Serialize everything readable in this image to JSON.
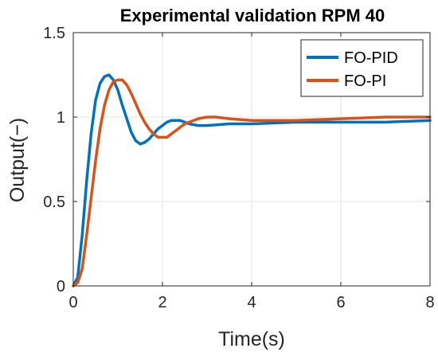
{
  "chart_data": {
    "type": "line",
    "title": "Experimental validation RPM 40",
    "xlabel": "Time(s)",
    "ylabel": "Output(−)",
    "xlim": [
      0,
      8
    ],
    "ylim": [
      0,
      1.5
    ],
    "xticks": [
      0,
      2,
      4,
      6,
      8
    ],
    "yticks": [
      0,
      0.5,
      1,
      1.5
    ],
    "ytick_labels": [
      "0",
      "0.5",
      "1",
      "1.5"
    ],
    "grid": true,
    "legend_position": "top-right",
    "series": [
      {
        "name": "FO-PID",
        "color": "#0072BD",
        "x": [
          0,
          0.1,
          0.2,
          0.3,
          0.4,
          0.5,
          0.6,
          0.7,
          0.8,
          0.9,
          1.0,
          1.1,
          1.2,
          1.3,
          1.4,
          1.5,
          1.6,
          1.7,
          1.8,
          1.9,
          2.0,
          2.1,
          2.2,
          2.3,
          2.4,
          2.5,
          2.6,
          2.8,
          3.0,
          3.5,
          4.0,
          5.0,
          6.0,
          7.0,
          8.0
        ],
        "y": [
          0,
          0.05,
          0.3,
          0.62,
          0.9,
          1.1,
          1.2,
          1.24,
          1.25,
          1.22,
          1.16,
          1.07,
          0.99,
          0.91,
          0.86,
          0.84,
          0.85,
          0.87,
          0.9,
          0.93,
          0.95,
          0.97,
          0.98,
          0.98,
          0.98,
          0.97,
          0.96,
          0.95,
          0.95,
          0.96,
          0.96,
          0.97,
          0.97,
          0.97,
          0.98
        ]
      },
      {
        "name": "FO-PI",
        "color": "#D95319",
        "x": [
          0,
          0.1,
          0.2,
          0.3,
          0.4,
          0.5,
          0.6,
          0.7,
          0.8,
          0.9,
          1.0,
          1.1,
          1.2,
          1.3,
          1.4,
          1.5,
          1.6,
          1.7,
          1.8,
          1.9,
          2.0,
          2.1,
          2.2,
          2.3,
          2.4,
          2.5,
          2.6,
          2.8,
          3.0,
          3.2,
          3.5,
          4.0,
          5.0,
          6.0,
          7.0,
          8.0
        ],
        "y": [
          0,
          0.02,
          0.1,
          0.3,
          0.52,
          0.74,
          0.93,
          1.07,
          1.16,
          1.21,
          1.22,
          1.22,
          1.19,
          1.14,
          1.08,
          1.02,
          0.97,
          0.93,
          0.9,
          0.88,
          0.88,
          0.88,
          0.9,
          0.92,
          0.94,
          0.96,
          0.97,
          0.99,
          1.0,
          1.0,
          0.99,
          0.98,
          0.98,
          0.99,
          1.0,
          1.0
        ]
      }
    ]
  }
}
